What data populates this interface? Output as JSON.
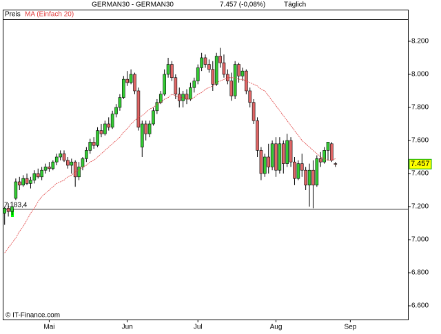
{
  "chart_data": {
    "type": "candlestick",
    "title": "GERMAN30 - GERMAN30",
    "last_change": "7.457 (-0,08%)",
    "interval": "Täglich",
    "source": "© IT-Finance.com",
    "xlim": [
      -0.5,
      108.5
    ],
    "xticks": [
      {
        "value": 12,
        "label": "Mai"
      },
      {
        "value": 33,
        "label": "Jun"
      },
      {
        "value": 52,
        "label": "Jul"
      },
      {
        "value": 73,
        "label": "Aug"
      },
      {
        "value": 93,
        "label": "Sep"
      }
    ],
    "ylim": [
      6517,
      8333
    ],
    "yticks": [
      {
        "value": 6600,
        "label": "6.600"
      },
      {
        "value": 6800,
        "label": "6.800"
      },
      {
        "value": 7000,
        "label": "7.000"
      },
      {
        "value": 7200,
        "label": "7.200"
      },
      {
        "value": 7400,
        "label": "7.400"
      },
      {
        "value": 7600,
        "label": "7.600"
      },
      {
        "value": 7800,
        "label": "7.800"
      },
      {
        "value": 8000,
        "label": "8.000"
      },
      {
        "value": 8200,
        "label": "8.200"
      }
    ],
    "reference_line": {
      "value": 7183.4,
      "label": "7.183,4"
    },
    "last_price": {
      "value": 7457,
      "label": "7.457"
    },
    "up_color": "#33cc33",
    "down_color": "#e06666",
    "series": [
      {
        "name": "Preis",
        "open": [
          7160,
          7190,
          7170,
          7250,
          7350,
          7330,
          7370,
          7340,
          7360,
          7400,
          7380,
          7420,
          7440,
          7430,
          7470,
          7500,
          7520,
          7480,
          7450,
          7470,
          7380,
          7440,
          7490,
          7540,
          7590,
          7570,
          7660,
          7640,
          7700,
          7680,
          7760,
          7800,
          7860,
          7970,
          7950,
          8000,
          7900,
          7560,
          7700,
          7640,
          7700,
          7780,
          7830,
          7880,
          8000,
          8060,
          7980,
          7880,
          7840,
          7880,
          7850,
          7920,
          7960,
          8040,
          8100,
          8060,
          8030,
          7940,
          8110,
          8070,
          8000,
          7960,
          7870,
          8060,
          7990,
          8020,
          7900,
          7830,
          7720,
          7540,
          7400,
          7500,
          7440,
          7580,
          7420,
          7580,
          7460,
          7600,
          7470,
          7370,
          7460,
          7420,
          7330,
          7420,
          7330,
          7490,
          7470,
          7540,
          7580,
          7460
        ],
        "high": [
          7200,
          7220,
          7230,
          7370,
          7380,
          7390,
          7400,
          7380,
          7420,
          7430,
          7440,
          7460,
          7470,
          7480,
          7520,
          7540,
          7540,
          7500,
          7490,
          7480,
          7470,
          7500,
          7560,
          7610,
          7620,
          7680,
          7700,
          7720,
          7740,
          7780,
          7820,
          7880,
          7990,
          8020,
          8030,
          8010,
          7920,
          7720,
          7720,
          7720,
          7800,
          7850,
          7900,
          8030,
          8100,
          8080,
          8000,
          7920,
          7900,
          7910,
          7950,
          7980,
          8060,
          8130,
          8120,
          8090,
          8080,
          8130,
          8160,
          8120,
          8030,
          8010,
          8080,
          8070,
          8040,
          8030,
          7920,
          7850,
          7740,
          7560,
          7520,
          7580,
          7600,
          7620,
          7620,
          7600,
          7640,
          7620,
          7500,
          7480,
          7520,
          7440,
          7460,
          7480,
          7510,
          7530,
          7560,
          7590,
          7590,
          7470
        ],
        "low": [
          7090,
          7140,
          7150,
          7240,
          7300,
          7320,
          7330,
          7310,
          7340,
          7370,
          7360,
          7400,
          7410,
          7420,
          7450,
          7480,
          7470,
          7430,
          7400,
          7320,
          7360,
          7420,
          7470,
          7520,
          7550,
          7560,
          7620,
          7630,
          7660,
          7670,
          7740,
          7780,
          7850,
          7930,
          7940,
          7880,
          7660,
          7500,
          7600,
          7620,
          7690,
          7760,
          7820,
          7870,
          7980,
          7960,
          7850,
          7800,
          7800,
          7820,
          7840,
          7890,
          7940,
          8020,
          8040,
          8010,
          7900,
          7930,
          8040,
          7980,
          7940,
          7840,
          7850,
          7950,
          7960,
          7880,
          7800,
          7700,
          7500,
          7360,
          7380,
          7400,
          7420,
          7380,
          7400,
          7400,
          7440,
          7440,
          7330,
          7360,
          7380,
          7300,
          7200,
          7190,
          7320,
          7440,
          7460,
          7480,
          7470,
          7440
        ],
        "close": [
          7190,
          7170,
          7200,
          7350,
          7330,
          7370,
          7340,
          7360,
          7400,
          7380,
          7420,
          7440,
          7430,
          7470,
          7500,
          7520,
          7480,
          7450,
          7470,
          7380,
          7440,
          7490,
          7540,
          7590,
          7570,
          7660,
          7640,
          7700,
          7680,
          7760,
          7800,
          7860,
          7970,
          7950,
          8000,
          7900,
          7680,
          7700,
          7640,
          7700,
          7780,
          7830,
          7880,
          8000,
          8060,
          7980,
          7880,
          7840,
          7880,
          7850,
          7920,
          7960,
          8040,
          8100,
          8060,
          8030,
          7940,
          8110,
          8070,
          8000,
          7960,
          7870,
          8060,
          7990,
          8020,
          7900,
          7830,
          7720,
          7540,
          7400,
          7500,
          7440,
          7580,
          7420,
          7580,
          7460,
          7600,
          7470,
          7370,
          7460,
          7420,
          7330,
          7420,
          7330,
          7490,
          7470,
          7540,
          7590,
          7480,
          7457
        ]
      },
      {
        "name": "MA (Einfach 20)",
        "color": "#e03c3c",
        "values": [
          6920,
          6950,
          6980,
          7010,
          7050,
          7080,
          7120,
          7160,
          7190,
          7230,
          7260,
          7280,
          7300,
          7320,
          7340,
          7350,
          7360,
          7380,
          7390,
          7410,
          7420,
          7440,
          7450,
          7470,
          7480,
          7500,
          7520,
          7540,
          7560,
          7580,
          7600,
          7620,
          7650,
          7670,
          7700,
          7720,
          7740,
          7750,
          7770,
          7790,
          7800,
          7820,
          7830,
          7850,
          7860,
          7880,
          7870,
          7860,
          7860,
          7850,
          7850,
          7860,
          7880,
          7890,
          7910,
          7920,
          7930,
          7950,
          7960,
          7970,
          7980,
          7980,
          7980,
          7970,
          7970,
          7960,
          7950,
          7940,
          7930,
          7910,
          7900,
          7870,
          7840,
          7810,
          7780,
          7750,
          7720,
          7690,
          7660,
          7630,
          7600,
          7580,
          7560,
          7540,
          7520,
          7500,
          7490,
          7480,
          7480,
          7490
        ]
      }
    ]
  }
}
